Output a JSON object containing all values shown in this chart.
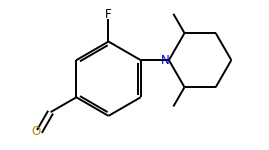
{
  "background_color": "#ffffff",
  "bond_color": "#000000",
  "atom_colors": {
    "O": "#b8860b",
    "N": "#0000cd",
    "F": "#000000",
    "C": "#000000"
  },
  "figsize": [
    2.69,
    1.5
  ],
  "dpi": 100,
  "lw": 1.4
}
